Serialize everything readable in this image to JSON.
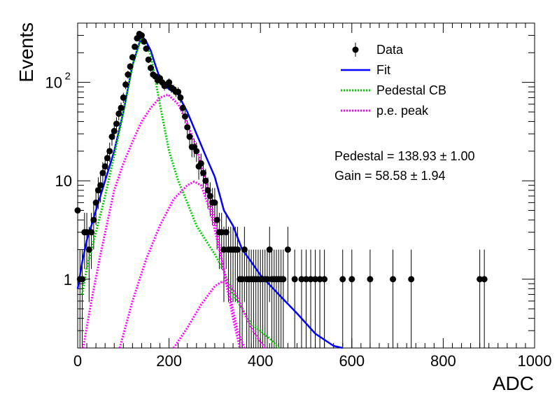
{
  "chart_data": {
    "type": "scatter",
    "xlabel": "ADC",
    "ylabel": "Events",
    "xlim": [
      0,
      1000
    ],
    "ylim": [
      0.2,
      400
    ],
    "yscale": "log",
    "grid": false,
    "legend_position": "top-right",
    "x_ticks": [
      "0",
      "200",
      "400",
      "600",
      "800",
      "1000"
    ],
    "y_ticks": [
      {
        "value": 1,
        "label": "1",
        "sup": ""
      },
      {
        "value": 10,
        "label": "10",
        "sup": ""
      },
      {
        "value": 100,
        "label": "10",
        "sup": "2"
      }
    ],
    "legend": [
      {
        "label": "Data",
        "kind": "marker",
        "color": "#000000"
      },
      {
        "label": "Fit",
        "kind": "line",
        "color": "#0000ff"
      },
      {
        "label": "Pedestal CB",
        "kind": "dotted",
        "color": "#00cc00"
      },
      {
        "label": "p.e. peak",
        "kind": "dotted",
        "color": "#ff00ff"
      }
    ],
    "annotations": [
      "Pedestal = 138.93 ± 1.00",
      "Gain = 58.58 ± 1.94"
    ],
    "fit_params": {
      "pedestal": 138.93,
      "pedestal_err": 1.0,
      "gain": 58.58,
      "gain_err": 1.94
    },
    "data_points": {
      "x": [
        0,
        5,
        10,
        15,
        20,
        25,
        30,
        35,
        40,
        45,
        50,
        55,
        60,
        65,
        70,
        75,
        80,
        85,
        90,
        95,
        100,
        105,
        110,
        115,
        120,
        125,
        130,
        135,
        140,
        145,
        150,
        155,
        160,
        165,
        170,
        175,
        180,
        185,
        190,
        195,
        200,
        205,
        210,
        215,
        220,
        225,
        230,
        235,
        240,
        245,
        250,
        255,
        260,
        265,
        270,
        275,
        280,
        285,
        290,
        295,
        300,
        305,
        310,
        315,
        320,
        325,
        330,
        335,
        340,
        345,
        350,
        355,
        360,
        365,
        370,
        375,
        380,
        385,
        390,
        395,
        400,
        405,
        410,
        415,
        420,
        425,
        430,
        435,
        440,
        445,
        450,
        460,
        475,
        490,
        500,
        510,
        520,
        530,
        540,
        580,
        600,
        640,
        690,
        730,
        880,
        890
      ],
      "y": [
        5,
        1,
        1,
        3,
        3,
        2,
        3,
        4,
        6,
        8,
        9,
        12,
        14,
        17,
        20,
        28,
        32,
        38,
        48,
        55,
        70,
        95,
        120,
        145,
        180,
        230,
        280,
        310,
        300,
        260,
        220,
        170,
        140,
        120,
        115,
        105,
        110,
        100,
        92,
        95,
        100,
        88,
        85,
        80,
        80,
        70,
        55,
        45,
        35,
        28,
        22,
        22,
        20,
        14,
        15,
        12,
        10,
        8,
        7,
        6,
        6,
        4,
        3,
        3,
        2,
        3,
        2,
        2,
        2,
        2,
        2,
        1,
        1,
        2,
        1,
        1,
        1,
        1,
        1,
        1,
        1,
        1,
        1,
        1,
        2,
        1,
        1,
        1,
        1,
        1,
        1,
        2,
        1,
        1,
        1,
        1,
        1,
        1,
        1,
        1,
        1,
        1,
        1,
        1,
        1,
        1
      ]
    },
    "series": [
      {
        "name": "Fit",
        "color": "#0000ff",
        "x": [
          0,
          10,
          20,
          30,
          40,
          60,
          80,
          100,
          120,
          140,
          150,
          160,
          170,
          180,
          200,
          220,
          240,
          260,
          280,
          300,
          320,
          340,
          360,
          380,
          400,
          440,
          480,
          520,
          560,
          580
        ],
        "y": [
          0.8,
          1.5,
          2.5,
          3.5,
          5,
          10,
          20,
          50,
          150,
          300,
          260,
          210,
          150,
          110,
          85,
          75,
          50,
          30,
          18,
          11,
          5,
          3.5,
          2,
          1.5,
          1.1,
          0.7,
          0.45,
          0.28,
          0.21,
          0.2
        ]
      },
      {
        "name": "Pedestal CB",
        "color": "#00cc00",
        "x": [
          10,
          20,
          40,
          60,
          80,
          100,
          120,
          140,
          160,
          180,
          200,
          220,
          240,
          260,
          280,
          300,
          320,
          340,
          360,
          380,
          400,
          420,
          440
        ],
        "y": [
          0.7,
          1.3,
          3,
          7,
          18,
          50,
          150,
          290,
          190,
          60,
          20,
          10,
          6,
          3.5,
          2.5,
          1.8,
          1.2,
          0.7,
          0.5,
          0.35,
          0.3,
          0.25,
          0.2
        ]
      },
      {
        "name": "p.e. peak",
        "color": "#ff00ff",
        "x": [
          12,
          30,
          50,
          80,
          100,
          120,
          140,
          160,
          180,
          198,
          220,
          240,
          260,
          280,
          300,
          320,
          340,
          355
        ],
        "y": [
          0.2,
          0.6,
          1.8,
          8,
          15,
          25,
          40,
          55,
          70,
          75,
          60,
          38,
          22,
          10,
          4,
          1.2,
          0.4,
          0.2
        ]
      },
      {
        "name": "",
        "color": "#ff00ff",
        "x": [
          92,
          120,
          150,
          180,
          210,
          240,
          255,
          270,
          290,
          310,
          330,
          350,
          365
        ],
        "y": [
          0.2,
          0.6,
          1.6,
          3.5,
          6.5,
          9,
          9.8,
          9,
          5,
          2,
          0.8,
          0.3,
          0.2
        ]
      },
      {
        "name": "",
        "color": "#ff00ff",
        "x": [
          210,
          240,
          270,
          300,
          317,
          335,
          350,
          365,
          380,
          395,
          410
        ],
        "y": [
          0.2,
          0.32,
          0.55,
          0.85,
          0.95,
          0.85,
          0.65,
          0.45,
          0.32,
          0.25,
          0.2
        ]
      }
    ]
  }
}
